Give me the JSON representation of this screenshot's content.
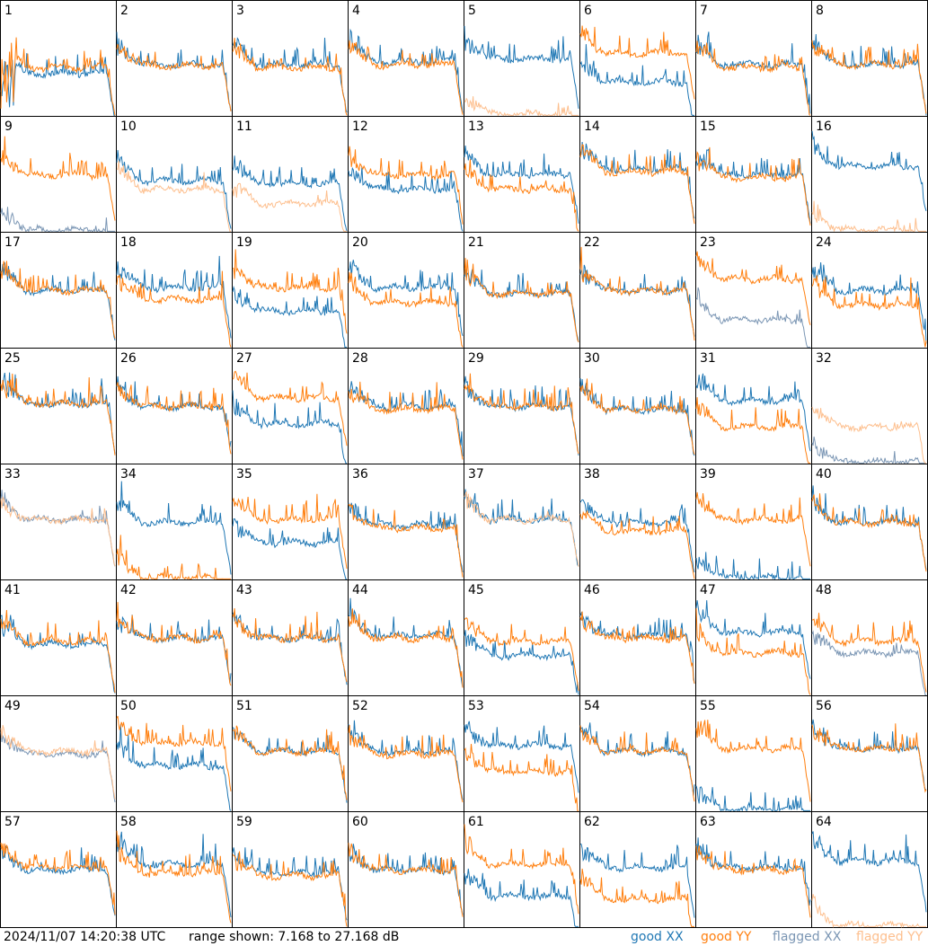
{
  "footer": {
    "timestamp": "2024/11/07 14:20:38 UTC",
    "range": "range shown: 7.168 to 27.168 dB"
  },
  "legend": [
    {
      "label": "good XX",
      "color": "#1f77b4"
    },
    {
      "label": "good YY",
      "color": "#ff7f0e"
    },
    {
      "label": "flagged XX",
      "color": "#7b96b4"
    },
    {
      "label": "flagged YY",
      "color": "#fdbf8e"
    }
  ],
  "chart_data": {
    "type": "line",
    "title": "",
    "grid_layout": "8x8 small multiples",
    "x_range": [
      0,
      100
    ],
    "ylim": [
      7.168,
      27.168
    ],
    "panels": [
      {
        "id": 1,
        "xx": "good",
        "yy": "good",
        "xx_level": 14.5,
        "yy_level": 15.5,
        "xx_edge": 8.0,
        "yy_edge": 8.0
      },
      {
        "id": 2,
        "xx": "good",
        "yy": "good",
        "xx_level": 16.0,
        "yy_level": 15.8
      },
      {
        "id": 3,
        "xx": "good",
        "yy": "good",
        "xx_level": 16.0,
        "yy_level": 15.5
      },
      {
        "id": 4,
        "xx": "good",
        "yy": "good",
        "xx_level": 16.5,
        "yy_level": 16.0
      },
      {
        "id": 5,
        "xx": "good",
        "yy": "flagged",
        "xx_level": 17.0,
        "yy_level": 7.5
      },
      {
        "id": 6,
        "xx": "good",
        "yy": "good",
        "xx_level": 13.0,
        "yy_level": 18.0
      },
      {
        "id": 7,
        "xx": "good",
        "yy": "good",
        "xx_level": 16.0,
        "yy_level": 15.5
      },
      {
        "id": 8,
        "xx": "good",
        "yy": "good",
        "xx_level": 16.0,
        "yy_level": 16.0
      },
      {
        "id": 9,
        "xx": "flagged",
        "yy": "good",
        "xx_level": 7.5,
        "yy_level": 17.0
      },
      {
        "id": 10,
        "xx": "good",
        "yy": "flagged",
        "xx_level": 16.0,
        "yy_level": 14.5
      },
      {
        "id": 11,
        "xx": "good",
        "yy": "flagged",
        "xx_level": 15.5,
        "yy_level": 12.0
      },
      {
        "id": 12,
        "xx": "good",
        "yy": "good",
        "xx_level": 14.5,
        "yy_level": 17.0
      },
      {
        "id": 13,
        "xx": "good",
        "yy": "good",
        "xx_level": 17.0,
        "yy_level": 14.5
      },
      {
        "id": 14,
        "xx": "good",
        "yy": "good",
        "xx_level": 18.0,
        "yy_level": 17.5
      },
      {
        "id": 15,
        "xx": "good",
        "yy": "good",
        "xx_level": 17.0,
        "yy_level": 16.5
      },
      {
        "id": 16,
        "xx": "good",
        "yy": "flagged",
        "xx_level": 18.5,
        "yy_level": 7.5
      },
      {
        "id": 17,
        "xx": "good",
        "yy": "good",
        "xx_level": 17.0,
        "yy_level": 17.0
      },
      {
        "id": 18,
        "xx": "good",
        "yy": "good",
        "xx_level": 17.5,
        "yy_level": 15.5
      },
      {
        "id": 19,
        "xx": "good",
        "yy": "good",
        "xx_level": 13.5,
        "yy_level": 17.5
      },
      {
        "id": 20,
        "xx": "good",
        "yy": "good",
        "xx_level": 17.5,
        "yy_level": 15.0
      },
      {
        "id": 21,
        "xx": "good",
        "yy": "good",
        "xx_level": 16.5,
        "yy_level": 16.5
      },
      {
        "id": 22,
        "xx": "good",
        "yy": "good",
        "xx_level": 17.0,
        "yy_level": 17.0
      },
      {
        "id": 23,
        "xx": "flagged",
        "yy": "good",
        "xx_level": 12.0,
        "yy_level": 19.0
      },
      {
        "id": 24,
        "xx": "good",
        "yy": "good",
        "xx_level": 17.0,
        "yy_level": 14.5
      },
      {
        "id": 25,
        "xx": "good",
        "yy": "good",
        "xx_level": 17.5,
        "yy_level": 17.5
      },
      {
        "id": 26,
        "xx": "good",
        "yy": "good",
        "xx_level": 17.0,
        "yy_level": 17.0
      },
      {
        "id": 27,
        "xx": "good",
        "yy": "good",
        "xx_level": 14.0,
        "yy_level": 18.5
      },
      {
        "id": 28,
        "xx": "good",
        "yy": "good",
        "xx_level": 17.0,
        "yy_level": 16.5
      },
      {
        "id": 29,
        "xx": "good",
        "yy": "good",
        "xx_level": 17.0,
        "yy_level": 17.0
      },
      {
        "id": 30,
        "xx": "good",
        "yy": "good",
        "xx_level": 16.5,
        "yy_level": 16.5
      },
      {
        "id": 31,
        "xx": "good",
        "yy": "good",
        "xx_level": 18.0,
        "yy_level": 13.5
      },
      {
        "id": 32,
        "xx": "flagged",
        "yy": "flagged",
        "xx_level": 7.5,
        "yy_level": 13.5
      },
      {
        "id": 33,
        "xx": "flagged",
        "yy": "flagged",
        "xx_level": 17.5,
        "yy_level": 17.5
      },
      {
        "id": 34,
        "xx": "good",
        "yy": "good",
        "xx_level": 17.0,
        "yy_level": 7.5
      },
      {
        "id": 35,
        "xx": "good",
        "yy": "good",
        "xx_level": 13.5,
        "yy_level": 17.5
      },
      {
        "id": 36,
        "xx": "good",
        "yy": "good",
        "xx_level": 16.5,
        "yy_level": 16.0
      },
      {
        "id": 37,
        "xx": "good",
        "yy": "flagged",
        "xx_level": 17.5,
        "yy_level": 17.5
      },
      {
        "id": 38,
        "xx": "good",
        "yy": "good",
        "xx_level": 17.0,
        "yy_level": 15.5
      },
      {
        "id": 39,
        "xx": "good",
        "yy": "good",
        "xx_level": 7.5,
        "yy_level": 17.5
      },
      {
        "id": 40,
        "xx": "good",
        "yy": "good",
        "xx_level": 17.0,
        "yy_level": 17.0
      },
      {
        "id": 41,
        "xx": "good",
        "yy": "good",
        "xx_level": 16.0,
        "yy_level": 16.5
      },
      {
        "id": 42,
        "xx": "good",
        "yy": "good",
        "xx_level": 17.0,
        "yy_level": 17.0
      },
      {
        "id": 43,
        "xx": "good",
        "yy": "good",
        "xx_level": 17.0,
        "yy_level": 17.0
      },
      {
        "id": 44,
        "xx": "good",
        "yy": "good",
        "xx_level": 17.5,
        "yy_level": 17.0
      },
      {
        "id": 45,
        "xx": "good",
        "yy": "good",
        "xx_level": 14.0,
        "yy_level": 16.5
      },
      {
        "id": 46,
        "xx": "good",
        "yy": "good",
        "xx_level": 17.5,
        "yy_level": 17.0
      },
      {
        "id": 47,
        "xx": "good",
        "yy": "good",
        "xx_level": 18.0,
        "yy_level": 14.5
      },
      {
        "id": 48,
        "xx": "flagged",
        "yy": "good",
        "xx_level": 14.5,
        "yy_level": 16.5
      },
      {
        "id": 49,
        "xx": "flagged",
        "yy": "flagged",
        "xx_level": 17.0,
        "yy_level": 17.5
      },
      {
        "id": 50,
        "xx": "good",
        "yy": "good",
        "xx_level": 15.0,
        "yy_level": 19.0
      },
      {
        "id": 51,
        "xx": "good",
        "yy": "good",
        "xx_level": 17.5,
        "yy_level": 17.5
      },
      {
        "id": 52,
        "xx": "good",
        "yy": "good",
        "xx_level": 17.5,
        "yy_level": 17.0
      },
      {
        "id": 53,
        "xx": "good",
        "yy": "good",
        "xx_level": 18.5,
        "yy_level": 14.0
      },
      {
        "id": 54,
        "xx": "good",
        "yy": "good",
        "xx_level": 17.5,
        "yy_level": 17.5
      },
      {
        "id": 55,
        "xx": "good",
        "yy": "good",
        "xx_level": 7.5,
        "yy_level": 18.0
      },
      {
        "id": 56,
        "xx": "good",
        "yy": "good",
        "xx_level": 18.0,
        "yy_level": 18.0
      },
      {
        "id": 57,
        "xx": "good",
        "yy": "good",
        "xx_level": 17.0,
        "yy_level": 17.5
      },
      {
        "id": 58,
        "xx": "good",
        "yy": "good",
        "xx_level": 18.0,
        "yy_level": 16.5
      },
      {
        "id": 59,
        "xx": "good",
        "yy": "good",
        "xx_level": 16.5,
        "yy_level": 16.0
      },
      {
        "id": 60,
        "xx": "good",
        "yy": "good",
        "xx_level": 17.0,
        "yy_level": 17.0
      },
      {
        "id": 61,
        "xx": "good",
        "yy": "good",
        "xx_level": 12.5,
        "yy_level": 18.0
      },
      {
        "id": 62,
        "xx": "good",
        "yy": "good",
        "xx_level": 17.5,
        "yy_level": 12.0
      },
      {
        "id": 63,
        "xx": "good",
        "yy": "good",
        "xx_level": 17.5,
        "yy_level": 17.0
      },
      {
        "id": 64,
        "xx": "good",
        "yy": "flagged",
        "xx_level": 18.5,
        "yy_level": 7.5
      }
    ]
  }
}
